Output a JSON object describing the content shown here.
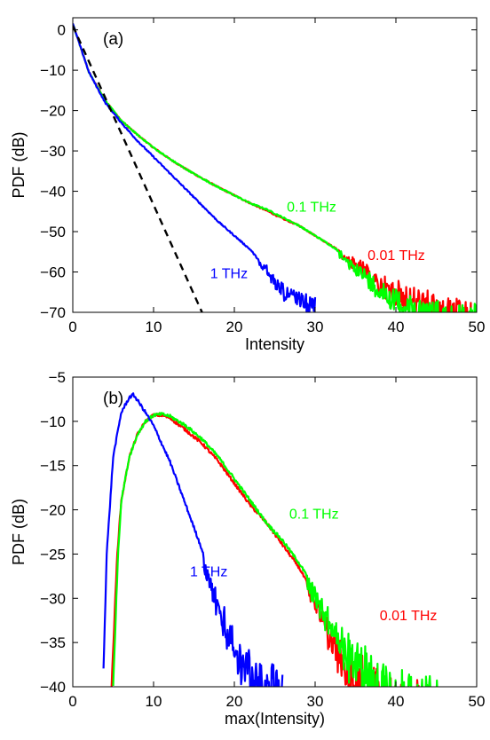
{
  "chart_data": [
    {
      "type": "line",
      "panel_label": "(a)",
      "xlabel": "Intensity",
      "ylabel": "PDF (dB)",
      "xlim": [
        0,
        50
      ],
      "ylim": [
        -70,
        3
      ],
      "xticks": [
        0,
        10,
        20,
        30,
        40,
        50
      ],
      "yticks": [
        0,
        -10,
        -20,
        -30,
        -40,
        -50,
        -60,
        -70
      ],
      "xtick_labels": [
        "0",
        "10",
        "20",
        "30",
        "40",
        "50"
      ],
      "ytick_labels": [
        "0",
        "−10",
        "−20",
        "−30",
        "−40",
        "−50",
        "−60",
        "−70"
      ],
      "grid": false,
      "series": [
        {
          "name": "0.01 THz",
          "color": "#ff0000",
          "noisy_from": 33,
          "x": [
            0,
            2,
            4,
            6,
            8,
            10,
            12,
            14,
            16,
            18,
            20,
            22,
            24,
            26,
            28,
            30,
            32,
            34,
            36,
            38,
            40,
            42,
            44,
            46,
            48,
            50
          ],
          "y": [
            1.5,
            -10.5,
            -17.5,
            -22.5,
            -26,
            -29.2,
            -32,
            -34.5,
            -36.8,
            -39,
            -41,
            -43,
            -44.8,
            -46.8,
            -48.5,
            -51,
            -53.5,
            -56,
            -58,
            -61,
            -62.5,
            -63.5,
            -65,
            -66,
            -66.5,
            -68
          ]
        },
        {
          "name": "0.1 THz",
          "color": "#00ff00",
          "noisy_from": 33,
          "x": [
            0,
            2,
            4,
            6,
            8,
            10,
            12,
            14,
            16,
            18,
            20,
            22,
            24,
            26,
            28,
            30,
            32,
            34,
            36,
            38,
            40,
            42,
            44,
            46,
            48,
            50
          ],
          "y": [
            1.5,
            -10.5,
            -17.5,
            -22.5,
            -26,
            -29.2,
            -32,
            -34.5,
            -36.8,
            -39,
            -41,
            -43,
            -44.5,
            -46.5,
            -48.5,
            -51,
            -53.5,
            -56.5,
            -59,
            -62,
            -64,
            -65.5,
            -66.5,
            -67.5,
            -68,
            -68
          ]
        },
        {
          "name": "1 THz",
          "color": "#0000ff",
          "noisy_from": 23,
          "x": [
            0,
            2,
            4,
            6,
            8,
            10,
            12,
            14,
            16,
            18,
            20,
            22,
            23,
            24,
            25,
            26,
            27,
            28,
            30
          ],
          "y": [
            1.5,
            -10.5,
            -18,
            -23,
            -27.5,
            -31.5,
            -35.5,
            -39.5,
            -43.5,
            -47.5,
            -51,
            -54.5,
            -57,
            -58.5,
            -61,
            -63,
            -64,
            -65,
            -65.5
          ]
        },
        {
          "name": "",
          "color": "#000000",
          "dashed": true,
          "x": [
            0,
            16
          ],
          "y": [
            1,
            -70
          ]
        }
      ],
      "annotations": [
        {
          "text": "0.1 THz",
          "color": "#00ff00",
          "x": 26.5,
          "y": -45
        },
        {
          "text": "0.01 THz",
          "color": "#ff0000",
          "x": 36.5,
          "y": -57
        },
        {
          "text": "1 THz",
          "color": "#0000ff",
          "x": 17,
          "y": -61.5
        }
      ]
    },
    {
      "type": "line",
      "panel_label": "(b)",
      "xlabel": "max(Intensity)",
      "ylabel": "PDF (dB)",
      "xlim": [
        0,
        50
      ],
      "ylim": [
        -40,
        -5
      ],
      "xticks": [
        0,
        10,
        20,
        30,
        40,
        50
      ],
      "yticks": [
        -5,
        -10,
        -15,
        -20,
        -25,
        -30,
        -35,
        -40
      ],
      "xtick_labels": [
        "0",
        "10",
        "20",
        "30",
        "40",
        "50"
      ],
      "ytick_labels": [
        "−5",
        "−10",
        "−15",
        "−20",
        "−25",
        "−30",
        "−35",
        "−40"
      ],
      "grid": false,
      "series": [
        {
          "name": "0.01 THz",
          "color": "#ff0000",
          "noisy_from": 29,
          "x": [
            4.8,
            5.5,
            6,
            7,
            8,
            9,
            10,
            11,
            12,
            14,
            16,
            18,
            20,
            22,
            24,
            26,
            28,
            30,
            32,
            34,
            36,
            38,
            40,
            42,
            44
          ],
          "y": [
            -40,
            -25,
            -19,
            -14,
            -11.5,
            -10,
            -9.3,
            -9.3,
            -9.6,
            -11,
            -12.5,
            -14.5,
            -17,
            -19.5,
            -21.5,
            -24,
            -26.5,
            -30,
            -33,
            -36,
            -37,
            -38,
            -39,
            -39.5,
            -38.5
          ]
        },
        {
          "name": "0.1 THz",
          "color": "#00ff00",
          "noisy_from": 29,
          "x": [
            5,
            5.6,
            6,
            7,
            8,
            9,
            10,
            11,
            12,
            14,
            16,
            18,
            20,
            22,
            24,
            26,
            28,
            30,
            32,
            34,
            36,
            38,
            40,
            42,
            44,
            46
          ],
          "y": [
            -40,
            -25,
            -19,
            -14,
            -11.5,
            -10,
            -9.3,
            -9.2,
            -9.4,
            -10.5,
            -12,
            -14,
            -16.5,
            -19,
            -21.5,
            -23.5,
            -26,
            -29,
            -32,
            -34,
            -35.5,
            -36.5,
            -37.5,
            -38.5,
            -38.5,
            -39
          ]
        },
        {
          "name": "1 THz",
          "color": "#0000ff",
          "noisy_from": 16,
          "x": [
            3.8,
            4.2,
            5,
            6,
            7,
            7.5,
            8,
            9,
            10,
            11,
            12,
            13,
            14,
            15,
            16,
            17,
            18,
            19,
            20,
            21,
            22,
            23,
            24,
            26
          ],
          "y": [
            -38,
            -25,
            -14,
            -9,
            -7.3,
            -7,
            -7.6,
            -9,
            -10.5,
            -12.5,
            -14.5,
            -17,
            -19.5,
            -22,
            -24.5,
            -27,
            -30,
            -32,
            -33.5,
            -35,
            -36,
            -37,
            -37.5,
            -37.5
          ]
        }
      ],
      "annotations": [
        {
          "text": "0.1 THz",
          "color": "#00ff00",
          "x": 26.8,
          "y": -21
        },
        {
          "text": "0.01 THz",
          "color": "#ff0000",
          "x": 38,
          "y": -32.5
        },
        {
          "text": "1 THz",
          "color": "#0000ff",
          "x": 14.5,
          "y": -27.5
        }
      ]
    }
  ]
}
